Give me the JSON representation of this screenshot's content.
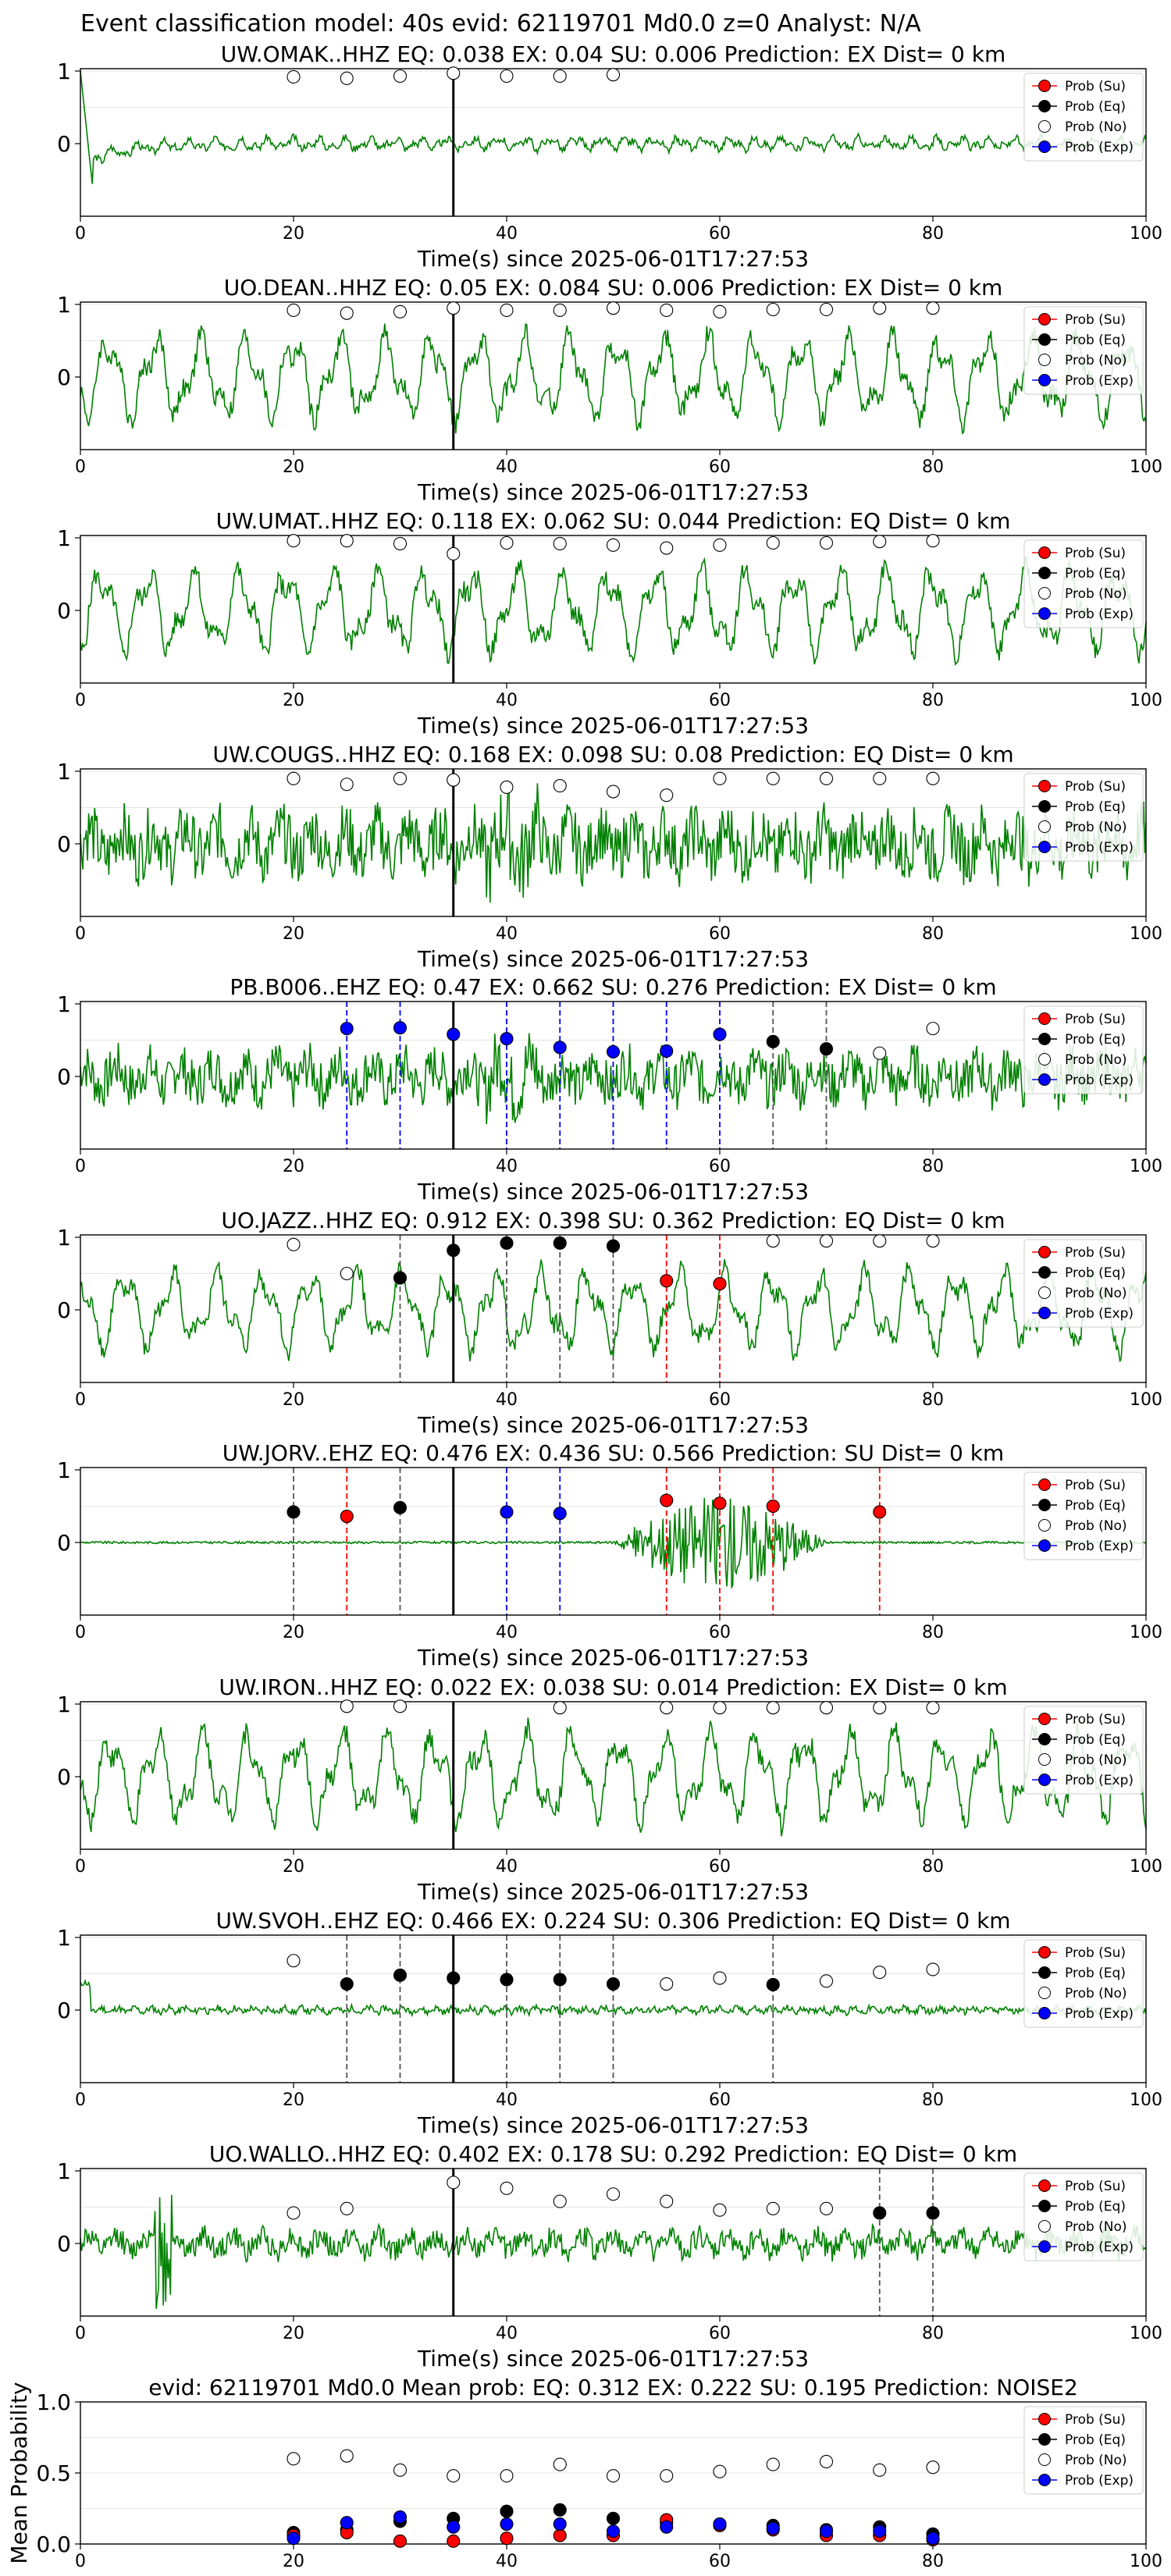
{
  "figure": {
    "suptitle": "Event classification model: 40s evid: 62119701 Md0.0 z=0 Analyst: N/A"
  },
  "legend": [
    "Prob (Su)",
    "Prob (Eq)",
    "Prob (No)",
    "Prob (Exp)"
  ],
  "colors": {
    "waveform": "#008000",
    "su": "#ff0000",
    "eq": "#000000",
    "no": "#ffffff",
    "exp": "#0000ff",
    "pick": "#000000",
    "grid": "#e6e6e6"
  },
  "chart_data": [
    {
      "type": "line",
      "title": "UW.OMAK..HHZ   EQ: 0.038  EX: 0.04  SU: 0.006   Prediction: EX    Dist= 0 km",
      "xlabel": "Time(s) since 2025-06-01T17:27:53",
      "xlim": [
        0,
        100
      ],
      "ylim": [
        -1,
        1
      ],
      "xticks": [
        "0",
        "20",
        "40",
        "60",
        "80",
        "100"
      ],
      "yticks": [
        "0",
        "1"
      ],
      "pick_time": 35,
      "waveform": {
        "style": "decay",
        "amp": 0.35
      },
      "points": {
        "no": [
          [
            20,
            0.92
          ],
          [
            25,
            0.9
          ],
          [
            30,
            0.93
          ],
          [
            35,
            0.97
          ],
          [
            40,
            0.93
          ],
          [
            45,
            0.93
          ],
          [
            50,
            0.95
          ]
        ],
        "eq": [],
        "su": [],
        "exp": []
      },
      "marker_lines": []
    },
    {
      "type": "line",
      "title": "UO.DEAN..HHZ   EQ: 0.05  EX: 0.084  SU: 0.006   Prediction: EX    Dist= 0 km",
      "xlabel": "Time(s) since 2025-06-01T17:27:53",
      "xlim": [
        0,
        100
      ],
      "ylim": [
        -1,
        1
      ],
      "xticks": [
        "0",
        "20",
        "40",
        "60",
        "80",
        "100"
      ],
      "yticks": [
        "0",
        "1"
      ],
      "pick_time": 35,
      "waveform": {
        "style": "oscillating",
        "amp": 0.8
      },
      "points": {
        "no": [
          [
            20,
            0.92
          ],
          [
            25,
            0.88
          ],
          [
            30,
            0.9
          ],
          [
            35,
            0.95
          ],
          [
            40,
            0.92
          ],
          [
            45,
            0.92
          ],
          [
            50,
            0.95
          ],
          [
            55,
            0.92
          ],
          [
            60,
            0.9
          ],
          [
            65,
            0.93
          ],
          [
            70,
            0.93
          ],
          [
            75,
            0.95
          ],
          [
            80,
            0.95
          ]
        ],
        "eq": [],
        "su": [],
        "exp": []
      },
      "marker_lines": []
    },
    {
      "type": "line",
      "title": "UW.UMAT..HHZ   EQ: 0.118  EX: 0.062  SU: 0.044   Prediction: EQ    Dist= 0 km",
      "xlabel": "Time(s) since 2025-06-01T17:27:53",
      "xlim": [
        0,
        100
      ],
      "ylim": [
        -1,
        1
      ],
      "xticks": [
        "0",
        "20",
        "40",
        "60",
        "80",
        "100"
      ],
      "yticks": [
        "0",
        "1"
      ],
      "pick_time": 35,
      "waveform": {
        "style": "oscillating",
        "amp": 0.8
      },
      "points": {
        "no": [
          [
            20,
            0.96
          ],
          [
            25,
            0.96
          ],
          [
            30,
            0.92
          ],
          [
            35,
            0.78
          ],
          [
            40,
            0.93
          ],
          [
            45,
            0.92
          ],
          [
            50,
            0.9
          ],
          [
            55,
            0.86
          ],
          [
            60,
            0.9
          ],
          [
            65,
            0.93
          ],
          [
            70,
            0.93
          ],
          [
            75,
            0.95
          ],
          [
            80,
            0.96
          ]
        ],
        "eq": [],
        "su": [],
        "exp": []
      },
      "marker_lines": []
    },
    {
      "type": "line",
      "title": "UW.COUGS..HHZ   EQ: 0.168  EX: 0.098  SU: 0.08   Prediction: EQ    Dist= 0 km",
      "xlabel": "Time(s) since 2025-06-01T17:27:53",
      "xlim": [
        0,
        100
      ],
      "ylim": [
        -1,
        1
      ],
      "xticks": [
        "0",
        "20",
        "40",
        "60",
        "80",
        "100"
      ],
      "yticks": [
        "0",
        "1"
      ],
      "pick_time": 35,
      "waveform": {
        "style": "noisy",
        "amp": 0.75
      },
      "points": {
        "no": [
          [
            20,
            0.9
          ],
          [
            25,
            0.82
          ],
          [
            30,
            0.9
          ],
          [
            35,
            0.88
          ],
          [
            40,
            0.78
          ],
          [
            45,
            0.8
          ],
          [
            50,
            0.72
          ],
          [
            55,
            0.67
          ],
          [
            60,
            0.9
          ],
          [
            65,
            0.9
          ],
          [
            70,
            0.9
          ],
          [
            75,
            0.9
          ],
          [
            80,
            0.9
          ]
        ],
        "eq": [],
        "su": [],
        "exp": []
      },
      "marker_lines": []
    },
    {
      "type": "line",
      "title": "PB.B006..EHZ   EQ: 0.47  EX: 0.662  SU: 0.276   Prediction: EX    Dist= 0 km",
      "xlabel": "Time(s) since 2025-06-01T17:27:53",
      "xlim": [
        0,
        100
      ],
      "ylim": [
        -1,
        1
      ],
      "xticks": [
        "0",
        "20",
        "40",
        "60",
        "80",
        "100"
      ],
      "yticks": [
        "0",
        "1"
      ],
      "pick_time": 35,
      "waveform": {
        "style": "noisy",
        "amp": 0.6
      },
      "points": {
        "no": [
          [
            75,
            0.32
          ],
          [
            80,
            0.66
          ]
        ],
        "eq": [
          [
            65,
            0.48
          ],
          [
            70,
            0.38
          ]
        ],
        "su": [],
        "exp": [
          [
            25,
            0.66
          ],
          [
            30,
            0.67
          ],
          [
            35,
            0.58
          ],
          [
            40,
            0.52
          ],
          [
            45,
            0.4
          ],
          [
            50,
            0.34
          ],
          [
            55,
            0.35
          ],
          [
            60,
            0.58
          ]
        ]
      },
      "marker_lines": [
        {
          "x": 25,
          "cls": "exp"
        },
        {
          "x": 30,
          "cls": "exp"
        },
        {
          "x": 40,
          "cls": "exp"
        },
        {
          "x": 45,
          "cls": "exp"
        },
        {
          "x": 50,
          "cls": "exp"
        },
        {
          "x": 55,
          "cls": "exp"
        },
        {
          "x": 60,
          "cls": "exp"
        },
        {
          "x": 65,
          "cls": "eq"
        },
        {
          "x": 70,
          "cls": "eq"
        }
      ]
    },
    {
      "type": "line",
      "title": "UO.JAZZ..HHZ   EQ: 0.912  EX: 0.398  SU: 0.362   Prediction: EQ    Dist= 0 km",
      "xlabel": "Time(s) since 2025-06-01T17:27:53",
      "xlim": [
        0,
        100
      ],
      "ylim": [
        -1,
        1
      ],
      "xticks": [
        "0",
        "20",
        "40",
        "60",
        "80",
        "100"
      ],
      "yticks": [
        "0",
        "1"
      ],
      "pick_time": 35,
      "waveform": {
        "style": "oscillating",
        "amp": 0.75
      },
      "points": {
        "no": [
          [
            20,
            0.9
          ],
          [
            25,
            0.5
          ],
          [
            65,
            0.95
          ],
          [
            70,
            0.95
          ],
          [
            75,
            0.95
          ],
          [
            80,
            0.95
          ]
        ],
        "eq": [
          [
            30,
            0.44
          ],
          [
            35,
            0.82
          ],
          [
            40,
            0.92
          ],
          [
            45,
            0.92
          ],
          [
            50,
            0.88
          ]
        ],
        "su": [
          [
            55,
            0.4
          ],
          [
            60,
            0.36
          ]
        ],
        "exp": []
      },
      "marker_lines": [
        {
          "x": 30,
          "cls": "eq"
        },
        {
          "x": 40,
          "cls": "eq"
        },
        {
          "x": 45,
          "cls": "eq"
        },
        {
          "x": 50,
          "cls": "eq"
        },
        {
          "x": 55,
          "cls": "su"
        },
        {
          "x": 60,
          "cls": "su"
        }
      ]
    },
    {
      "type": "line",
      "title": "UW.JORV..EHZ   EQ: 0.476  EX: 0.436  SU: 0.566   Prediction: SU    Dist= 0 km",
      "xlabel": "Time(s) since 2025-06-01T17:27:53",
      "xlim": [
        0,
        100
      ],
      "ylim": [
        -1,
        1
      ],
      "xticks": [
        "0",
        "20",
        "40",
        "60",
        "80",
        "100"
      ],
      "yticks": [
        "0",
        "1"
      ],
      "pick_time": 35,
      "waveform": {
        "style": "burst",
        "amp": 0.8
      },
      "points": {
        "no": [],
        "eq": [
          [
            20,
            0.42
          ],
          [
            30,
            0.48
          ]
        ],
        "su": [
          [
            25,
            0.36
          ],
          [
            55,
            0.58
          ],
          [
            60,
            0.54
          ],
          [
            65,
            0.5
          ],
          [
            75,
            0.42
          ]
        ],
        "exp": [
          [
            40,
            0.42
          ],
          [
            45,
            0.4
          ]
        ]
      },
      "marker_lines": [
        {
          "x": 20,
          "cls": "eq"
        },
        {
          "x": 25,
          "cls": "su"
        },
        {
          "x": 30,
          "cls": "eq"
        },
        {
          "x": 40,
          "cls": "exp"
        },
        {
          "x": 45,
          "cls": "exp"
        },
        {
          "x": 55,
          "cls": "su"
        },
        {
          "x": 60,
          "cls": "su"
        },
        {
          "x": 65,
          "cls": "su"
        },
        {
          "x": 75,
          "cls": "su"
        }
      ]
    },
    {
      "type": "line",
      "title": "UW.IRON..HHZ   EQ: 0.022  EX: 0.038  SU: 0.014   Prediction: EX    Dist= 0 km",
      "xlabel": "Time(s) since 2025-06-01T17:27:53",
      "xlim": [
        0,
        100
      ],
      "ylim": [
        -1,
        1
      ],
      "xticks": [
        "0",
        "20",
        "40",
        "60",
        "80",
        "100"
      ],
      "yticks": [
        "0",
        "1"
      ],
      "pick_time": 35,
      "waveform": {
        "style": "oscillating",
        "amp": 0.85
      },
      "points": {
        "no": [
          [
            25,
            0.97
          ],
          [
            30,
            0.97
          ],
          [
            45,
            0.95
          ],
          [
            55,
            0.95
          ],
          [
            60,
            0.95
          ],
          [
            65,
            0.95
          ],
          [
            70,
            0.95
          ],
          [
            75,
            0.95
          ],
          [
            80,
            0.95
          ]
        ],
        "eq": [],
        "su": [],
        "exp": []
      },
      "marker_lines": []
    },
    {
      "type": "line",
      "title": "UW.SVOH..EHZ   EQ: 0.466  EX: 0.224  SU: 0.306   Prediction: EQ    Dist= 0 km",
      "xlabel": "Time(s) since 2025-06-01T17:27:53",
      "xlim": [
        0,
        100
      ],
      "ylim": [
        -1,
        1
      ],
      "xticks": [
        "0",
        "20",
        "40",
        "60",
        "80",
        "100"
      ],
      "yticks": [
        "0",
        "1"
      ],
      "pick_time": 35,
      "waveform": {
        "style": "quiet",
        "amp": 0.15
      },
      "points": {
        "no": [
          [
            20,
            0.68
          ],
          [
            55,
            0.36
          ],
          [
            60,
            0.44
          ],
          [
            70,
            0.4
          ],
          [
            75,
            0.52
          ],
          [
            80,
            0.56
          ]
        ],
        "eq": [
          [
            25,
            0.36
          ],
          [
            30,
            0.48
          ],
          [
            35,
            0.44
          ],
          [
            40,
            0.42
          ],
          [
            45,
            0.42
          ],
          [
            50,
            0.36
          ],
          [
            65,
            0.35
          ]
        ],
        "su": [],
        "exp": []
      },
      "marker_lines": [
        {
          "x": 25,
          "cls": "eq"
        },
        {
          "x": 30,
          "cls": "eq"
        },
        {
          "x": 40,
          "cls": "eq"
        },
        {
          "x": 45,
          "cls": "eq"
        },
        {
          "x": 50,
          "cls": "eq"
        },
        {
          "x": 65,
          "cls": "eq"
        }
      ]
    },
    {
      "type": "line",
      "title": "UO.WALLO..HHZ   EQ: 0.402  EX: 0.178  SU: 0.292   Prediction: EQ    Dist= 0 km",
      "xlabel": "Time(s) since 2025-06-01T17:27:53",
      "xlim": [
        0,
        100
      ],
      "ylim": [
        -1,
        1
      ],
      "xticks": [
        "0",
        "20",
        "40",
        "60",
        "80",
        "100"
      ],
      "yticks": [
        "0",
        "1"
      ],
      "pick_time": 35,
      "waveform": {
        "style": "spiky",
        "amp": 0.35
      },
      "points": {
        "no": [
          [
            20,
            0.42
          ],
          [
            25,
            0.48
          ],
          [
            35,
            0.84
          ],
          [
            40,
            0.76
          ],
          [
            45,
            0.58
          ],
          [
            50,
            0.68
          ],
          [
            55,
            0.58
          ],
          [
            60,
            0.46
          ],
          [
            65,
            0.48
          ],
          [
            70,
            0.48
          ]
        ],
        "eq": [
          [
            75,
            0.42
          ],
          [
            80,
            0.42
          ]
        ],
        "su": [],
        "exp": []
      },
      "marker_lines": [
        {
          "x": 75,
          "cls": "eq"
        },
        {
          "x": 80,
          "cls": "eq"
        }
      ]
    },
    {
      "type": "scatter",
      "title": "evid: 62119701   Md0.0    Mean prob:    EQ: 0.312   EX: 0.222   SU: 0.195    Prediction: NOISE2",
      "ylabel": "Mean Probability",
      "xlim": [
        0,
        100
      ],
      "ylim": [
        0,
        1
      ],
      "xticks": [
        "0",
        "20",
        "40",
        "60",
        "80",
        "100"
      ],
      "yticks": [
        "0.0",
        "0.5",
        "1.0"
      ],
      "points": {
        "no": [
          [
            20,
            0.6
          ],
          [
            25,
            0.62
          ],
          [
            30,
            0.52
          ],
          [
            35,
            0.48
          ],
          [
            40,
            0.48
          ],
          [
            45,
            0.56
          ],
          [
            50,
            0.48
          ],
          [
            55,
            0.48
          ],
          [
            60,
            0.51
          ],
          [
            65,
            0.56
          ],
          [
            70,
            0.58
          ],
          [
            75,
            0.52
          ],
          [
            80,
            0.54
          ]
        ],
        "eq": [
          [
            20,
            0.08
          ],
          [
            25,
            0.1
          ],
          [
            30,
            0.16
          ],
          [
            35,
            0.18
          ],
          [
            40,
            0.23
          ],
          [
            45,
            0.24
          ],
          [
            50,
            0.18
          ],
          [
            55,
            0.15
          ],
          [
            60,
            0.14
          ],
          [
            65,
            0.13
          ],
          [
            70,
            0.1
          ],
          [
            75,
            0.12
          ],
          [
            80,
            0.07
          ]
        ],
        "su": [
          [
            20,
            0.06
          ],
          [
            25,
            0.08
          ],
          [
            30,
            0.02
          ],
          [
            35,
            0.02
          ],
          [
            40,
            0.04
          ],
          [
            45,
            0.06
          ],
          [
            50,
            0.06
          ],
          [
            55,
            0.17
          ],
          [
            60,
            0.13
          ],
          [
            65,
            0.1
          ],
          [
            70,
            0.06
          ],
          [
            75,
            0.06
          ],
          [
            80,
            0.03
          ]
        ],
        "exp": [
          [
            20,
            0.04
          ],
          [
            25,
            0.15
          ],
          [
            30,
            0.19
          ],
          [
            35,
            0.12
          ],
          [
            40,
            0.14
          ],
          [
            45,
            0.14
          ],
          [
            50,
            0.09
          ],
          [
            55,
            0.12
          ],
          [
            60,
            0.14
          ],
          [
            65,
            0.11
          ],
          [
            70,
            0.09
          ],
          [
            75,
            0.09
          ],
          [
            80,
            0.04
          ]
        ]
      },
      "marker_lines": []
    }
  ]
}
